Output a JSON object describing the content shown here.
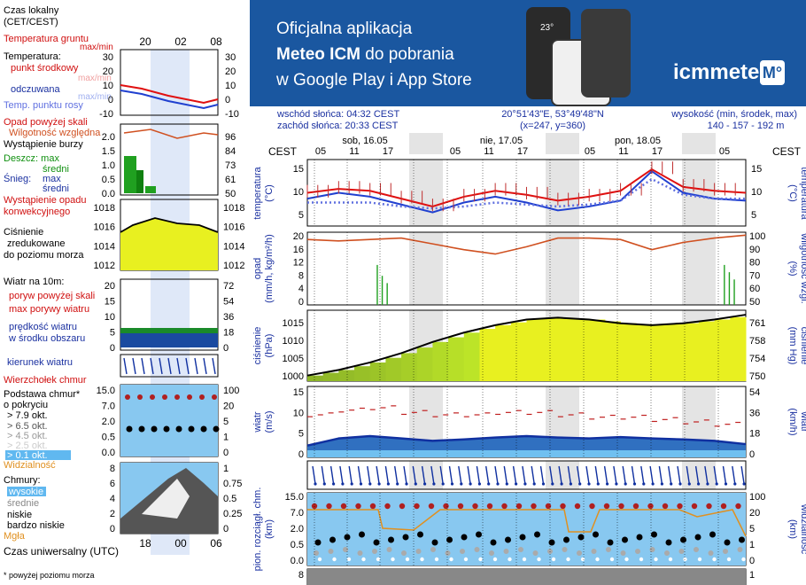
{
  "banner": {
    "line1": "Oficjalna aplikacja",
    "line2_bold": "Meteo ICM",
    "line2_rest": " do pobrania",
    "line3": "w Google Play i App Store",
    "logo_text": "icmmeteo",
    "logo_box": "M°",
    "phone_temp": "23°"
  },
  "header": {
    "sunrise": "wschód słońca: 04:32 CEST",
    "sunset": "zachód słońca: 20:33 CEST",
    "coords": "20°51'43\"E, 53°49'48\"N",
    "grid": "(x=247, y=360)",
    "height_label": "wysokość (min, środek, max)",
    "height_values": "140 - 157 - 192 m"
  },
  "time_axis": {
    "cest_label": "CEST",
    "days": [
      "sob, 16.05",
      "nie, 17.05",
      "pon, 18.05"
    ],
    "hours": [
      "05",
      "11",
      "17",
      "23",
      "05",
      "11",
      "17",
      "23",
      "05",
      "11",
      "17",
      "23",
      "05"
    ]
  },
  "legend": {
    "local_time": [
      "Czas lokalny",
      "(CET/CEST)"
    ],
    "local_hours": [
      "20",
      "02",
      "08"
    ],
    "utc_hours": [
      "18",
      "00",
      "06"
    ],
    "utc_label": "Czas uniwersalny (UTC)",
    "footnote": "* powyżej poziomu morza",
    "temp": {
      "lines": [
        "Temperatura gruntu",
        "max/min",
        "Temperatura:",
        "punkt środkowy",
        "max/min",
        "odczuwana",
        "max/min",
        "Temp. punktu rosy"
      ],
      "ticks": [
        "30",
        "20",
        "10",
        "0",
        "-10"
      ]
    },
    "precip": {
      "lines": [
        "Opad powyżej skali",
        "Wilgotność względna",
        "Wystąpienie burzy",
        "Deszcz: max",
        "średni",
        "Śnieg:",
        "max",
        "średni",
        "Wystąpienie opadu",
        "konwekcyjnego"
      ],
      "ticks_left": [
        "2.0",
        "1.5",
        "1.0",
        "0.5",
        "0.0"
      ],
      "ticks_right": [
        "96",
        "84",
        "73",
        "61",
        "50"
      ]
    },
    "pressure": {
      "lines": [
        "Ciśnienie",
        "zredukowane",
        "do poziomu morza"
      ],
      "ticks": [
        "1018",
        "1016",
        "1014",
        "1012"
      ]
    },
    "wind": {
      "lines": [
        "Wiatr na 10m:",
        "poryw powyżej skali",
        "max porywy wiatru",
        "prędkość wiatru",
        "w środku obszaru"
      ],
      "ticks_left": [
        "20",
        "15",
        "10",
        "5",
        "0"
      ],
      "ticks_right": [
        "72",
        "54",
        "36",
        "18",
        "0"
      ]
    },
    "wind_dir": "kierunek wiatru",
    "cloud_base": {
      "lines": [
        "Wierzchołek chmur",
        "Podstawa chmur*",
        "o pokryciu",
        "> 7.9 okt.",
        "> 6.5 okt.",
        "> 4.5 okt.",
        "> 2.5 okt.",
        "> 0.1 okt.",
        "Widzialność"
      ],
      "ticks_left": [
        "15.0",
        "7.0",
        "2.0",
        "0.5",
        "0.0"
      ],
      "ticks_right": [
        "100",
        "20",
        "5",
        "1",
        "0"
      ]
    },
    "clouds": {
      "lines": [
        "Chmury:",
        "wysokie",
        "średnie",
        "niskie",
        "bardzo niskie",
        "Mgła"
      ],
      "ticks_left": [
        "8",
        "6",
        "4",
        "2",
        "0"
      ],
      "ticks_right": [
        "1",
        "0.75",
        "0.5",
        "0.25",
        "0"
      ]
    }
  },
  "panels": {
    "temp": {
      "ylabel": "temperatura",
      "yunit": "(°C)",
      "ticks": [
        "15",
        "10",
        "5"
      ]
    },
    "precip": {
      "ylabel": "opad",
      "yunit": "(mm/h, kg/m²/h)",
      "ylabel_r": "wilgotność wzgl.",
      "yunit_r": "(%)",
      "ticks_left": [
        "20",
        "16",
        "12",
        "8",
        "4",
        "0"
      ],
      "ticks_right": [
        "100",
        "90",
        "80",
        "70",
        "60",
        "50"
      ]
    },
    "pressure": {
      "ylabel": "ciśnienie",
      "yunit": "(hPa)",
      "ylabel_r": "ciśnienie",
      "yunit_r": "(mm Hg)",
      "ticks_left": [
        "1015",
        "1010",
        "1005",
        "1000"
      ],
      "ticks_right": [
        "761",
        "758",
        "754",
        "750"
      ]
    },
    "wind": {
      "ylabel": "wiatr",
      "yunit": "(m/s)",
      "ylabel_r": "wiatr",
      "yunit_r": "(km/h)",
      "ticks_left": [
        "15",
        "10",
        "5",
        "0"
      ],
      "ticks_right": [
        "54",
        "36",
        "18",
        "0"
      ]
    },
    "cloud": {
      "ylabel": "pion. rozciągł. chm.",
      "yunit": "(km)",
      "ylabel_r": "widzialność",
      "yunit_r": "(km)",
      "ticks_left": [
        "15.0",
        "7.0",
        "2.0",
        "0.5",
        "0.0"
      ],
      "ticks_right": [
        "100",
        "20",
        "5",
        "1",
        "0"
      ]
    },
    "cloud2": {
      "ticks_left": [
        "8"
      ],
      "ticks_right": [
        "1"
      ]
    }
  },
  "chart_data": [
    {
      "type": "line",
      "title": "temperatura",
      "ylabel": "(°C)",
      "ylim": [
        1,
        18
      ],
      "x_hours": [
        0,
        6,
        12,
        18,
        24,
        30,
        36,
        42,
        48,
        54,
        60,
        66,
        72,
        78,
        84
      ],
      "series": [
        {
          "name": "punkt środkowy",
          "color": "#e01010",
          "values": [
            9.5,
            10.5,
            10,
            8,
            6,
            8.5,
            10,
            9,
            7.5,
            8.5,
            10,
            15.5,
            11,
            10,
            9.5
          ]
        },
        {
          "name": "odczuwana",
          "color": "#2040d0",
          "values": [
            8,
            9.5,
            8.5,
            6.5,
            4.5,
            7,
            8.5,
            7,
            5,
            6,
            7.5,
            15,
            9.5,
            8,
            7.5
          ]
        },
        {
          "name": "Temp. punktu rosy",
          "color": "#6070e0",
          "values": [
            7,
            7,
            7,
            6,
            5.5,
            6,
            7,
            6.5,
            6,
            6.5,
            7.5,
            13,
            9,
            8,
            8
          ]
        }
      ]
    },
    {
      "type": "line",
      "title": "opad / wilgotność",
      "ylabel": "(mm/h, kg/m²/h)",
      "ylim": [
        0,
        20
      ],
      "x_hours": [
        0,
        6,
        12,
        18,
        24,
        30,
        36,
        42,
        48,
        54,
        60,
        66,
        72,
        78,
        84
      ],
      "series": [
        {
          "name": "Wilgotność względna",
          "color": "#d05020",
          "values": [
            95,
            94,
            95,
            96,
            92,
            88,
            85,
            90,
            96,
            96,
            95,
            88,
            93,
            96,
            98
          ]
        },
        {
          "name": "Deszcz: max",
          "color": "#20a020",
          "values": [
            0,
            0,
            11,
            0,
            0,
            0,
            0,
            0,
            0,
            0,
            0,
            0,
            0,
            0,
            11
          ]
        }
      ]
    },
    {
      "type": "area",
      "title": "ciśnienie",
      "ylabel": "(hPa)",
      "ylim": [
        999,
        1018
      ],
      "x_hours": [
        0,
        6,
        12,
        18,
        24,
        30,
        36,
        42,
        48,
        54,
        60,
        66,
        72,
        78,
        84
      ],
      "series": [
        {
          "name": "Ciśnienie",
          "color": "#000000",
          "values": [
            1000.5,
            1002,
            1004,
            1006.5,
            1009.5,
            1012,
            1014,
            1015.5,
            1016,
            1015.5,
            1014.5,
            1014,
            1014.5,
            1015.5,
            1016.8
          ]
        }
      ]
    },
    {
      "type": "area",
      "title": "wiatr",
      "ylabel": "(m/s)",
      "ylim": [
        0,
        15
      ],
      "x_hours": [
        0,
        6,
        12,
        18,
        24,
        30,
        36,
        42,
        48,
        54,
        60,
        66,
        72,
        78,
        84
      ],
      "series": [
        {
          "name": "prędkość wiatru",
          "color": "#1030a0",
          "values": [
            2.5,
            4,
            4.5,
            4,
            3.5,
            3.8,
            4.2,
            4.5,
            4.2,
            4,
            4.3,
            4,
            3.8,
            3.5,
            2.8
          ]
        },
        {
          "name": "max porywy wiatru",
          "color": "#c02020",
          "values": [
            9,
            10,
            10.5,
            9.5,
            9,
            9,
            9.5,
            9.5,
            9,
            8.5,
            8.5,
            8,
            7.5,
            7,
            6
          ]
        }
      ]
    }
  ],
  "colors": {
    "banner": "#1a57a0",
    "temp": "#e01010",
    "feels": "#2040d0",
    "dew": "#6070e0",
    "humidity": "#d05020",
    "rain": "#20a020",
    "wind": "#1030a0",
    "gust": "#c02020",
    "pressure_fill": "#e8f020",
    "sky": "#88c8f0",
    "label_blue": "#1a30a0",
    "label_red": "#d01010"
  }
}
